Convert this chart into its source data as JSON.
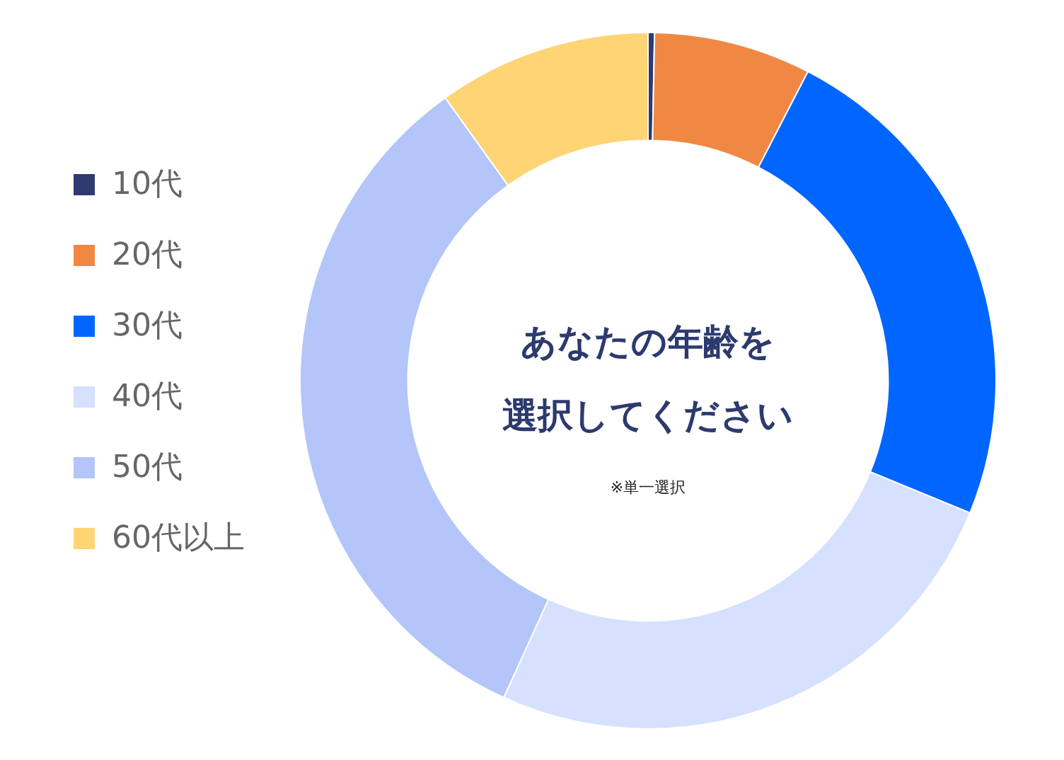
{
  "chart_data": {
    "type": "donut",
    "title": "あなたの年齢を",
    "subtitle": "選択してください",
    "annotations": [
      "※単一選択"
    ],
    "categories": [
      "10代",
      "20代",
      "30代",
      "40代",
      "50代",
      "60代以上"
    ],
    "values": [
      0.3,
      7.3,
      23.6,
      25.6,
      33.3,
      9.9
    ],
    "colors": [
      "#2e3a6e",
      "#f08843",
      "#0066ff",
      "#d6e0ff",
      "#b3c5f9",
      "#ffd475"
    ],
    "legend": "left"
  }
}
